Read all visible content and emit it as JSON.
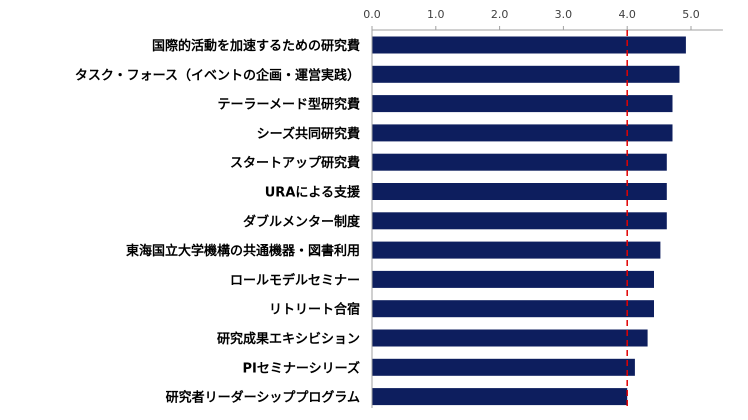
{
  "chart_data": {
    "type": "bar",
    "orientation": "horizontal",
    "categories": [
      "国際的活動を加速するための研究費",
      "タスク・フォース（イベントの企画・運営実践）",
      "テーラーメード型研究費",
      "シーズ共同研究費",
      "スタートアップ研究費",
      "URAによる支援",
      "ダブルメンター制度",
      "東海国立大学機構の共通機器・図書利用",
      "ロールモデルセミナー",
      "リトリート合宿",
      "研究成果エキシビション",
      "PIセミナーシリーズ",
      "研究者リーダーシッププログラム"
    ],
    "values": [
      4.92,
      4.82,
      4.71,
      4.71,
      4.62,
      4.62,
      4.62,
      4.52,
      4.42,
      4.42,
      4.32,
      4.12,
      4.0
    ],
    "highlight_category": "ロールモデルセミナー",
    "xlim": [
      0,
      5.5
    ],
    "xticks": [
      "0.0",
      "1.0",
      "2.0",
      "3.0",
      "4.0",
      "5.0"
    ],
    "tick_values": [
      0,
      1,
      2,
      3,
      4,
      5
    ],
    "x_axis_position": "top",
    "reference_line": {
      "value": 4.0,
      "style": "dashed",
      "color": "#e00000"
    },
    "colors": {
      "bar": "#0d1e5e",
      "highlight_label": "#e00000",
      "label": "#000000",
      "axis": "#a0a0a0"
    },
    "grid": false,
    "legend": "none",
    "title": "",
    "xlabel": "",
    "ylabel": ""
  }
}
